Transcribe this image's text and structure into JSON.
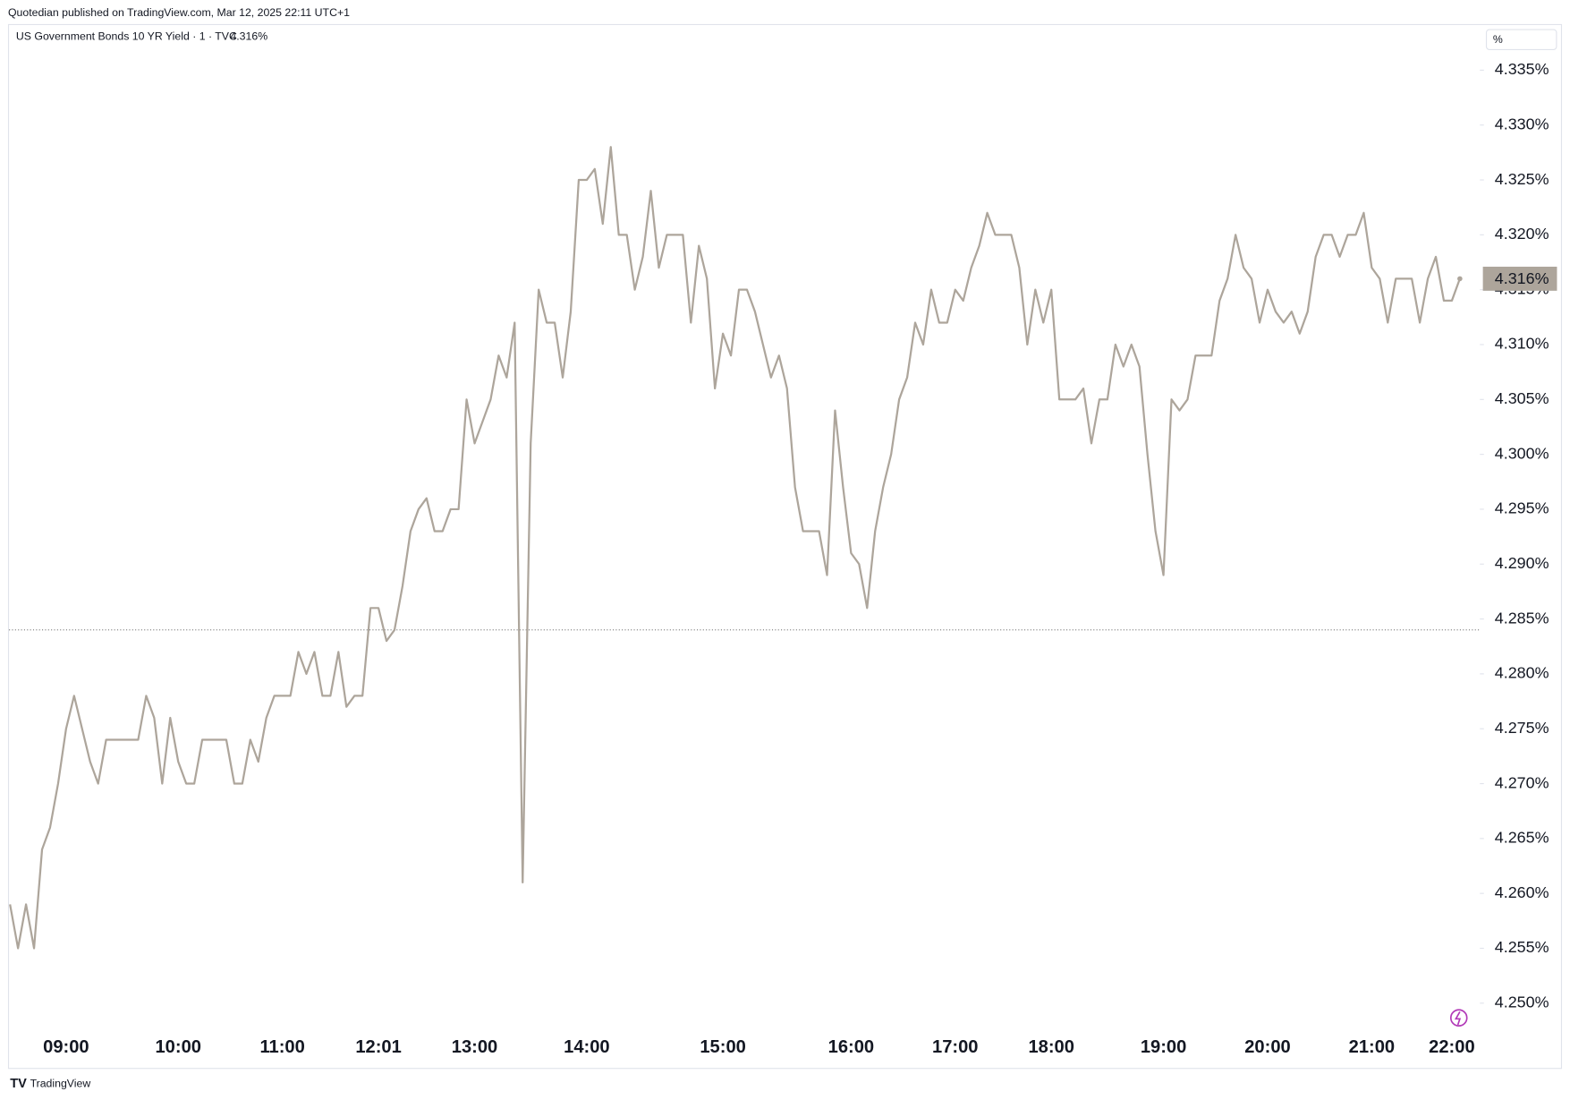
{
  "header": {
    "publisher": "Quotedian published on TradingView.com, Mar 12, 2025 22:11 UTC+1",
    "symbol": "US Government Bonds 10 YR Yield · 1 · TVC",
    "scale_button": "%",
    "footer": "TradingView"
  },
  "chart_data": {
    "type": "line",
    "color": "#ada59b",
    "categories": [
      null,
      null,
      null,
      null,
      null,
      null,
      null,
      "09:00",
      null,
      null,
      null,
      null,
      null,
      null,
      null,
      null,
      null,
      null,
      null,
      null,
      null,
      "10:00",
      null,
      null,
      null,
      null,
      null,
      null,
      null,
      null,
      null,
      null,
      null,
      null,
      "11:00",
      null,
      null,
      null,
      null,
      null,
      null,
      null,
      null,
      null,
      null,
      null,
      "12:01",
      null,
      null,
      null,
      null,
      null,
      null,
      null,
      null,
      null,
      null,
      null,
      "13:00",
      null,
      null,
      null,
      null,
      null,
      null,
      null,
      null,
      null,
      null,
      null,
      null,
      null,
      "14:00",
      null,
      null,
      null,
      null,
      null,
      null,
      null,
      null,
      null,
      null,
      null,
      null,
      null,
      null,
      null,
      null,
      "15:00",
      null,
      null,
      null,
      null,
      null,
      null,
      null,
      null,
      null,
      null,
      null,
      null,
      null,
      null,
      null,
      "16:00",
      null,
      null,
      null,
      null,
      null,
      null,
      null,
      null,
      null,
      null,
      null,
      null,
      "17:00",
      null,
      null,
      null,
      null,
      null,
      null,
      null,
      null,
      null,
      null,
      null,
      "18:00",
      null,
      null,
      null,
      null,
      null,
      null,
      null,
      null,
      null,
      null,
      null,
      null,
      null,
      "19:00",
      null,
      null,
      null,
      null,
      null,
      null,
      null,
      null,
      null,
      null,
      null,
      null,
      "20:00",
      null,
      null,
      null,
      null,
      null,
      null,
      null,
      null,
      null,
      null,
      null,
      null,
      "21:00",
      null,
      null,
      null,
      null,
      null,
      null,
      null,
      null,
      null,
      "22:00",
      null
    ],
    "values": [
      4.259,
      4.255,
      4.259,
      4.255,
      4.264,
      4.266,
      4.27,
      4.275,
      4.278,
      4.275,
      4.272,
      4.27,
      4.274,
      4.274,
      4.274,
      4.274,
      4.274,
      4.278,
      4.276,
      4.27,
      4.276,
      4.272,
      4.27,
      4.27,
      4.274,
      4.274,
      4.274,
      4.274,
      4.27,
      4.27,
      4.274,
      4.272,
      4.276,
      4.278,
      4.278,
      4.278,
      4.282,
      4.28,
      4.282,
      4.278,
      4.278,
      4.282,
      4.277,
      4.278,
      4.278,
      4.286,
      4.286,
      4.283,
      4.284,
      4.288,
      4.293,
      4.295,
      4.296,
      4.293,
      4.293,
      4.295,
      4.295,
      4.305,
      4.301,
      4.303,
      4.305,
      4.309,
      4.307,
      4.312,
      4.261,
      4.301,
      4.315,
      4.312,
      4.312,
      4.307,
      4.313,
      4.325,
      4.325,
      4.326,
      4.321,
      4.328,
      4.32,
      4.32,
      4.315,
      4.318,
      4.324,
      4.317,
      4.32,
      4.32,
      4.32,
      4.312,
      4.319,
      4.316,
      4.306,
      4.311,
      4.309,
      4.315,
      4.315,
      4.313,
      4.31,
      4.307,
      4.309,
      4.306,
      4.297,
      4.293,
      4.293,
      4.293,
      4.289,
      4.304,
      4.297,
      4.291,
      4.29,
      4.286,
      4.293,
      4.297,
      4.3,
      4.305,
      4.307,
      4.312,
      4.31,
      4.315,
      4.312,
      4.312,
      4.315,
      4.314,
      4.317,
      4.319,
      4.322,
      4.32,
      4.32,
      4.32,
      4.317,
      4.31,
      4.315,
      4.312,
      4.315,
      4.305,
      4.305,
      4.305,
      4.306,
      4.301,
      4.305,
      4.305,
      4.31,
      4.308,
      4.31,
      4.308,
      4.3,
      4.293,
      4.289,
      4.305,
      4.304,
      4.305,
      4.309,
      4.309,
      4.309,
      4.314,
      4.316,
      4.32,
      4.317,
      4.316,
      4.312,
      4.315,
      4.313,
      4.312,
      4.313,
      4.311,
      4.313,
      4.318,
      4.32,
      4.32,
      4.318,
      4.32,
      4.32,
      4.322,
      4.317,
      4.316,
      4.312,
      4.316,
      4.316,
      4.316,
      4.312,
      4.316,
      4.318,
      4.314,
      4.314,
      4.316
    ],
    "last_value": {
      "value": 4.316,
      "label": "4.316%"
    },
    "reference_line": 4.284,
    "ylim": [
      4.2441,
      4.3392
    ],
    "yticks": [
      {
        "value": 4.25,
        "label": "4.250%"
      },
      {
        "value": 4.255,
        "label": "4.255%"
      },
      {
        "value": 4.26,
        "label": "4.260%"
      },
      {
        "value": 4.265,
        "label": "4.265%"
      },
      {
        "value": 4.27,
        "label": "4.270%"
      },
      {
        "value": 4.275,
        "label": "4.275%"
      },
      {
        "value": 4.28,
        "label": "4.280%"
      },
      {
        "value": 4.285,
        "label": "4.285%"
      },
      {
        "value": 4.29,
        "label": "4.290%"
      },
      {
        "value": 4.295,
        "label": "4.295%"
      },
      {
        "value": 4.3,
        "label": "4.300%"
      },
      {
        "value": 4.305,
        "label": "4.305%"
      },
      {
        "value": 4.31,
        "label": "4.310%"
      },
      {
        "value": 4.315,
        "label": "4.315%"
      },
      {
        "value": 4.32,
        "label": "4.320%"
      },
      {
        "value": 4.325,
        "label": "4.325%"
      },
      {
        "value": 4.33,
        "label": "4.330%"
      },
      {
        "value": 4.335,
        "label": "4.335%"
      }
    ]
  }
}
